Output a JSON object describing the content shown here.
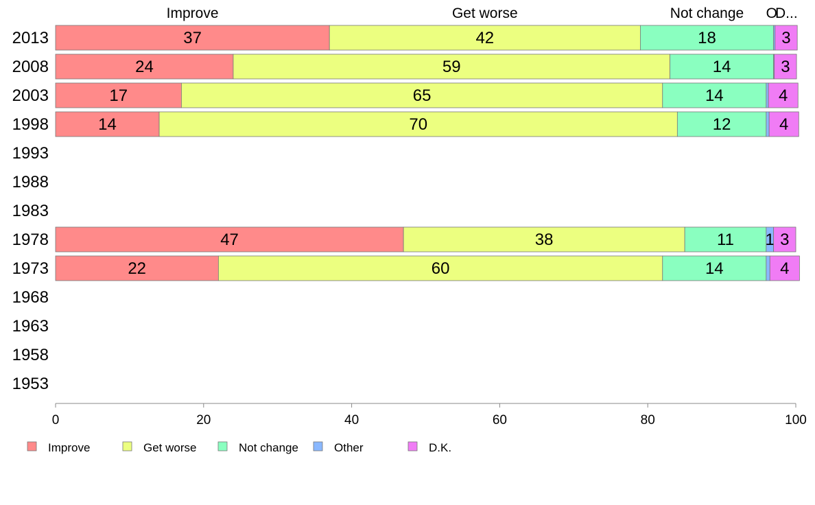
{
  "chart_data": {
    "type": "bar",
    "orientation": "horizontal",
    "stacked": true,
    "categories": [
      "2013",
      "2008",
      "2003",
      "1998",
      "1993",
      "1988",
      "1983",
      "1978",
      "1973",
      "1968",
      "1963",
      "1958",
      "1953"
    ],
    "series": [
      {
        "name": "Improve",
        "color": "#ff8a8a",
        "values": [
          37,
          24,
          17,
          14,
          null,
          null,
          null,
          47,
          22,
          null,
          null,
          null,
          null
        ]
      },
      {
        "name": "Get worse",
        "color": "#ecff80",
        "values": [
          42,
          59,
          65,
          70,
          null,
          null,
          null,
          38,
          60,
          null,
          null,
          null,
          null
        ]
      },
      {
        "name": "Not change",
        "color": "#8affc0",
        "values": [
          18,
          14,
          14,
          12,
          null,
          null,
          null,
          11,
          14,
          null,
          null,
          null,
          null
        ]
      },
      {
        "name": "Other",
        "color": "#8ab8ff",
        "values": [
          0.2,
          0.1,
          0.3,
          0.4,
          null,
          null,
          null,
          1,
          0.5,
          null,
          null,
          null,
          null
        ]
      },
      {
        "name": "D.K.",
        "color": "#f07cf5",
        "values": [
          3,
          3,
          4,
          4,
          null,
          null,
          null,
          3,
          4,
          null,
          null,
          null,
          null
        ]
      }
    ],
    "segment_labels": [
      [
        "37",
        "42",
        "18",
        "",
        "3"
      ],
      [
        "24",
        "59",
        "14",
        "",
        "3"
      ],
      [
        "17",
        "65",
        "14",
        "",
        "4"
      ],
      [
        "14",
        "70",
        "12",
        "",
        "4"
      ],
      [
        "",
        "",
        "",
        "",
        ""
      ],
      [
        "",
        "",
        "",
        "",
        ""
      ],
      [
        "",
        "",
        "",
        "",
        ""
      ],
      [
        "47",
        "38",
        "11",
        "1",
        "3"
      ],
      [
        "22",
        "60",
        "14",
        "",
        "4"
      ],
      [
        "",
        "",
        "",
        "",
        ""
      ],
      [
        "",
        "",
        "",
        "",
        ""
      ],
      [
        "",
        "",
        "",
        "",
        ""
      ],
      [
        "",
        "",
        "",
        "",
        ""
      ]
    ],
    "top_headers": [
      "Improve",
      "Get worse",
      "Not change",
      "O",
      "D..."
    ],
    "xlim": [
      0,
      100
    ],
    "xticks": [
      0,
      20,
      40,
      60,
      80,
      100
    ],
    "legend": {
      "position": "bottom-left",
      "entries": [
        "Improve",
        "Get worse",
        "Not change",
        "Other",
        "D.K."
      ]
    },
    "title": "",
    "xlabel": "",
    "ylabel": ""
  }
}
